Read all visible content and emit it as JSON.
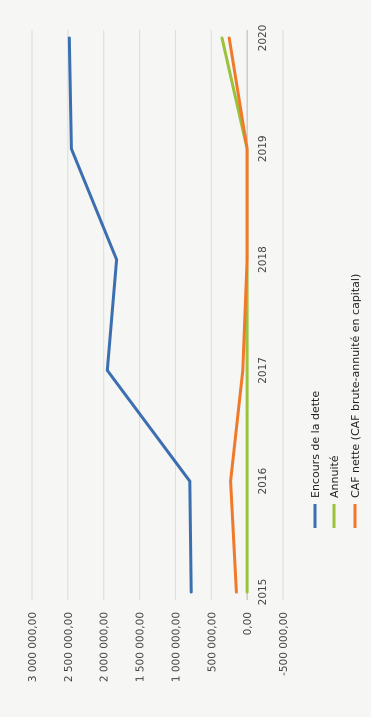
{
  "chart_data": {
    "type": "line",
    "title": "",
    "xlabel": "",
    "ylabel": "",
    "x": [
      2015,
      2016,
      2017,
      2018,
      2019,
      2020
    ],
    "x_tick_labels": [
      "2015",
      "2016",
      "2017",
      "2018",
      "2019",
      "2020"
    ],
    "ylim": [
      -500000,
      3000000
    ],
    "y_ticks": [
      -500000,
      0,
      500000,
      1000000,
      1500000,
      2000000,
      2500000,
      3000000
    ],
    "y_tick_labels": [
      "-500 000,00",
      "0,00",
      "500 000,00",
      "1 000 000,00",
      "1 500 000,00",
      "2 000 000,00",
      "2 500 000,00",
      "3 000 000,00"
    ],
    "grid": true,
    "legend_position": "bottom",
    "orientation": "image rotated 90 degrees counter-clockwise",
    "series": [
      {
        "name": "Encours de la dette",
        "color": "#3b6fb0",
        "values": [
          780000,
          800000,
          1950000,
          1820000,
          2450000,
          2480000
        ]
      },
      {
        "name": "Annuité",
        "color": "#9ac23c",
        "values": [
          0,
          0,
          0,
          0,
          0,
          350000
        ]
      },
      {
        "name": "CAF nette (CAF brute-annuité en capital)",
        "color": "#f07a2a",
        "values": [
          150000,
          230000,
          60000,
          0,
          0,
          250000
        ]
      }
    ]
  }
}
